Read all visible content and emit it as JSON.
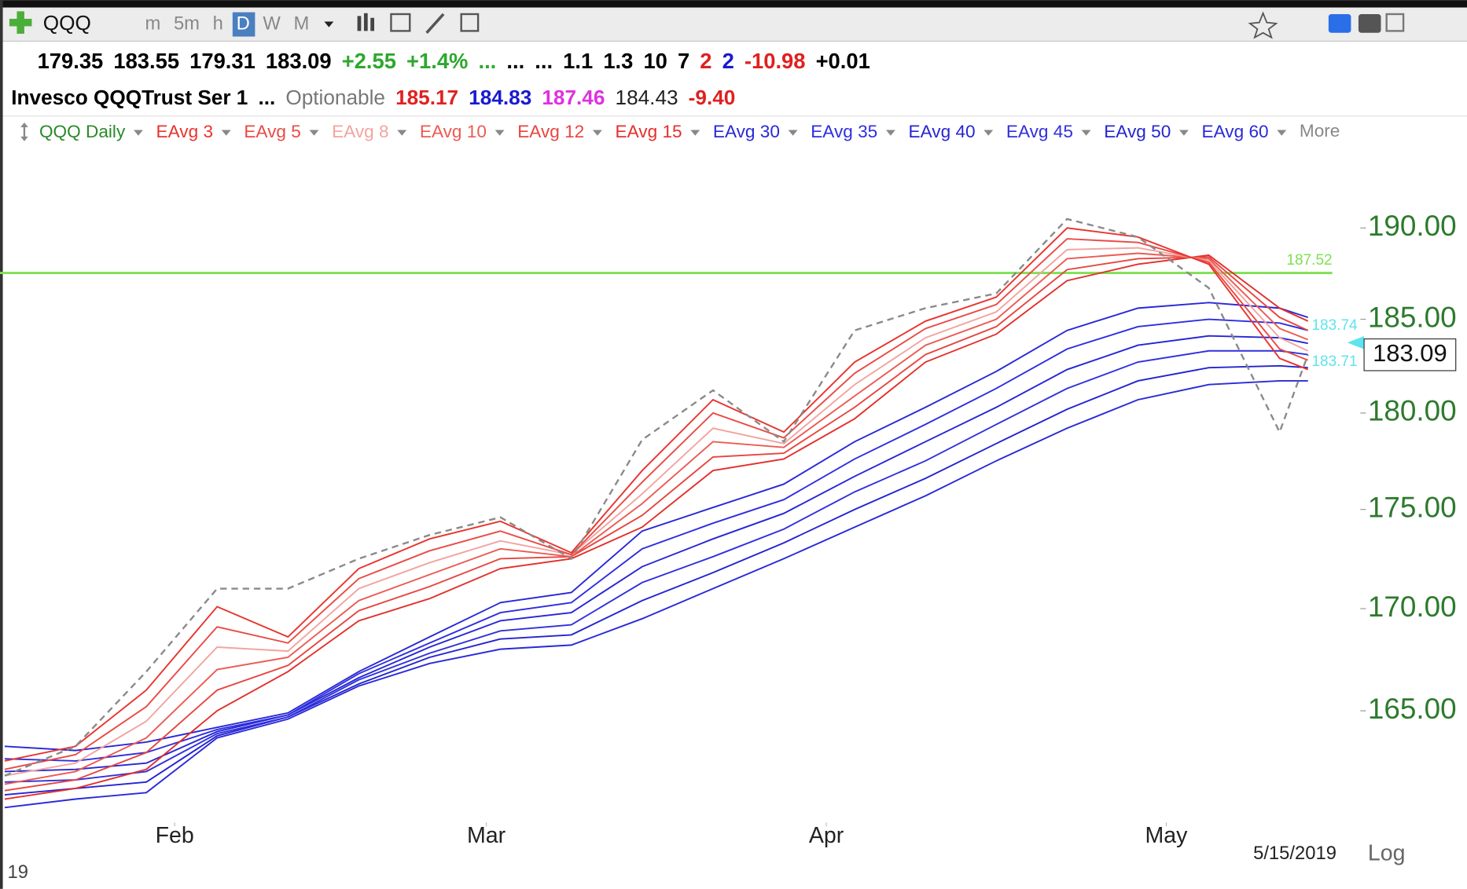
{
  "toolbar": {
    "symbol": "QQQ",
    "intervals": [
      "m",
      "5m",
      "h",
      "D",
      "W",
      "M"
    ],
    "active_interval": 3
  },
  "quote": {
    "row1": [
      {
        "text": "179.35",
        "color": "#000"
      },
      {
        "text": "183.55",
        "color": "#000"
      },
      {
        "text": "179.31",
        "color": "#000"
      },
      {
        "text": "183.09",
        "color": "#000"
      },
      {
        "text": "+2.55",
        "color": "#2ea82e"
      },
      {
        "text": "+1.4%",
        "color": "#2ea82e"
      },
      {
        "text": "...",
        "color": "#2ea82e"
      },
      {
        "text": "...",
        "color": "#000"
      },
      {
        "text": "...",
        "color": "#000"
      },
      {
        "text": "1.1",
        "color": "#000"
      },
      {
        "text": "1.3",
        "color": "#000"
      },
      {
        "text": "10",
        "color": "#000"
      },
      {
        "text": "7",
        "color": "#000"
      },
      {
        "text": "2",
        "color": "#e02020"
      },
      {
        "text": "2",
        "color": "#1a1ad0"
      },
      {
        "text": "-10.98",
        "color": "#e02020"
      },
      {
        "text": "+0.01",
        "color": "#000"
      }
    ],
    "row2": [
      {
        "text": "Invesco QQQTrust Ser 1",
        "color": "#000"
      },
      {
        "text": "...",
        "color": "#000"
      },
      {
        "text": "Optionable",
        "color": "#777"
      },
      {
        "text": "185.17",
        "color": "#e02020"
      },
      {
        "text": "184.83",
        "color": "#1a1ad0"
      },
      {
        "text": "187.46",
        "color": "#e030e0"
      },
      {
        "text": "184.43",
        "color": "#222"
      },
      {
        "text": "-9.40",
        "color": "#e02020"
      }
    ]
  },
  "more": "More",
  "chart_data": {
    "type": "line",
    "log_scale": true,
    "x": [
      0,
      5,
      10,
      15,
      20,
      25,
      30,
      35,
      40,
      45,
      50,
      55,
      60,
      65,
      70,
      75,
      80,
      85,
      90,
      92
    ],
    "xlim": [
      0,
      92
    ],
    "xticks": [
      {
        "value": 12,
        "label": "Feb"
      },
      {
        "value": 34,
        "label": "Mar"
      },
      {
        "value": 58,
        "label": "Apr"
      },
      {
        "value": 82,
        "label": "May"
      }
    ],
    "ylim": [
      159.7,
      194.4
    ],
    "yticks": [
      {
        "value": 165,
        "label": "165.00"
      },
      {
        "value": 170,
        "label": "170.00"
      },
      {
        "value": 175,
        "label": "175.00"
      },
      {
        "value": 180,
        "label": "180.00"
      },
      {
        "value": 185,
        "label": "185.00"
      },
      {
        "value": 190,
        "label": "190.00"
      }
    ],
    "series": [
      {
        "name": "QQQ Daily",
        "color": "#2a8a2a",
        "line_color": "#8a8a8a",
        "dashed": true,
        "values": [
          161.9,
          163.3,
          166.9,
          171,
          171,
          172.5,
          173.7,
          174.6,
          172.5,
          178.6,
          181.2,
          178.5,
          184.4,
          185.6,
          186.4,
          190.5,
          189.5,
          186.7,
          179,
          183.09
        ]
      },
      {
        "name": "EAvg 3",
        "color": "#e8342e",
        "values": [
          162.6,
          163.3,
          166.0,
          170.1,
          168.6,
          172.0,
          173.5,
          174.4,
          172.8,
          177.0,
          180.7,
          179.0,
          182.7,
          184.9,
          186.2,
          190.0,
          189.5,
          188.0,
          182.9,
          182.3
        ]
      },
      {
        "name": "EAvg 5",
        "color": "#ea4a44",
        "values": [
          162.2,
          162.9,
          165.2,
          169.1,
          168.3,
          171.5,
          172.9,
          173.9,
          172.7,
          176.4,
          180.0,
          178.7,
          182.1,
          184.5,
          185.8,
          189.4,
          189.2,
          188.1,
          183.4,
          182.8
        ]
      },
      {
        "name": "EAvg 8",
        "color": "#f2a4a0",
        "values": [
          161.9,
          162.5,
          164.5,
          168.1,
          167.9,
          171.0,
          172.3,
          173.4,
          172.7,
          175.8,
          179.2,
          178.4,
          181.5,
          184.0,
          185.4,
          188.8,
          188.9,
          188.2,
          184.0,
          183.3
        ]
      },
      {
        "name": "EAvg 10",
        "color": "#ec5a52",
        "values": [
          161.5,
          162.1,
          163.7,
          167.0,
          167.6,
          170.4,
          171.7,
          173.0,
          172.6,
          175.3,
          178.5,
          178.2,
          180.9,
          183.6,
          185.0,
          188.3,
          188.6,
          188.3,
          184.5,
          183.9
        ]
      },
      {
        "name": "EAvg 12",
        "color": "#e64640",
        "values": [
          161.2,
          161.7,
          163.0,
          166.0,
          167.2,
          169.9,
          171.1,
          172.5,
          172.6,
          174.7,
          177.7,
          177.9,
          180.3,
          183.1,
          184.6,
          187.7,
          188.3,
          188.4,
          185.1,
          184.4
        ]
      },
      {
        "name": "EAvg 15",
        "color": "#e2302c",
        "values": [
          160.8,
          161.3,
          162.2,
          165.0,
          166.9,
          169.4,
          170.5,
          172.0,
          172.5,
          174.1,
          177.0,
          177.6,
          179.7,
          182.7,
          184.2,
          187.1,
          188.0,
          188.5,
          185.6,
          184.9
        ]
      },
      {
        "name": "EAvg 30",
        "color": "#2828d8",
        "values": [
          163.3,
          163.1,
          163.5,
          164.2,
          164.9,
          166.9,
          168.6,
          170.3,
          170.8,
          173.9,
          175.1,
          176.3,
          178.5,
          180.3,
          182.2,
          184.4,
          185.6,
          185.9,
          185.6,
          185.1
        ]
      },
      {
        "name": "EAvg 35",
        "color": "#2e2ee0",
        "values": [
          162.7,
          162.6,
          163.0,
          164.1,
          164.8,
          166.8,
          168.3,
          169.8,
          170.3,
          173.0,
          174.3,
          175.5,
          177.6,
          179.4,
          181.3,
          183.4,
          184.6,
          185.0,
          184.8,
          184.4
        ]
      },
      {
        "name": "EAvg 40",
        "color": "#2626d4",
        "values": [
          162.1,
          162.2,
          162.5,
          164.0,
          164.8,
          166.6,
          168.1,
          169.4,
          169.8,
          172.1,
          173.5,
          174.8,
          176.7,
          178.5,
          180.3,
          182.3,
          183.6,
          184.1,
          184.0,
          183.7
        ]
      },
      {
        "name": "EAvg 45",
        "color": "#3030dc",
        "values": [
          161.6,
          161.7,
          162.1,
          163.9,
          164.7,
          166.5,
          167.8,
          168.9,
          169.2,
          171.3,
          172.6,
          174.0,
          175.9,
          177.5,
          179.4,
          181.3,
          182.7,
          183.3,
          183.3,
          183.1
        ]
      },
      {
        "name": "EAvg 50",
        "color": "#2424d0",
        "values": [
          161.0,
          161.3,
          161.6,
          163.8,
          164.7,
          166.3,
          167.6,
          168.5,
          168.7,
          170.4,
          171.8,
          173.3,
          175.0,
          176.6,
          178.4,
          180.2,
          181.7,
          182.4,
          182.5,
          182.4
        ]
      },
      {
        "name": "EAvg 60",
        "color": "#2a2ad8",
        "values": [
          160.4,
          160.8,
          161.1,
          163.7,
          164.6,
          166.2,
          167.3,
          168.0,
          168.2,
          169.5,
          171.0,
          172.5,
          174.1,
          175.7,
          177.5,
          179.2,
          180.7,
          181.5,
          181.7,
          181.7
        ]
      }
    ],
    "hlines": [
      {
        "value": 187.52,
        "color": "#7fe050"
      }
    ],
    "price_markers": [
      183.74,
      183.71
    ],
    "last_price": 183.09
  },
  "footer": {
    "date": "5/15/2019",
    "scale": "Log",
    "corner": "19"
  }
}
